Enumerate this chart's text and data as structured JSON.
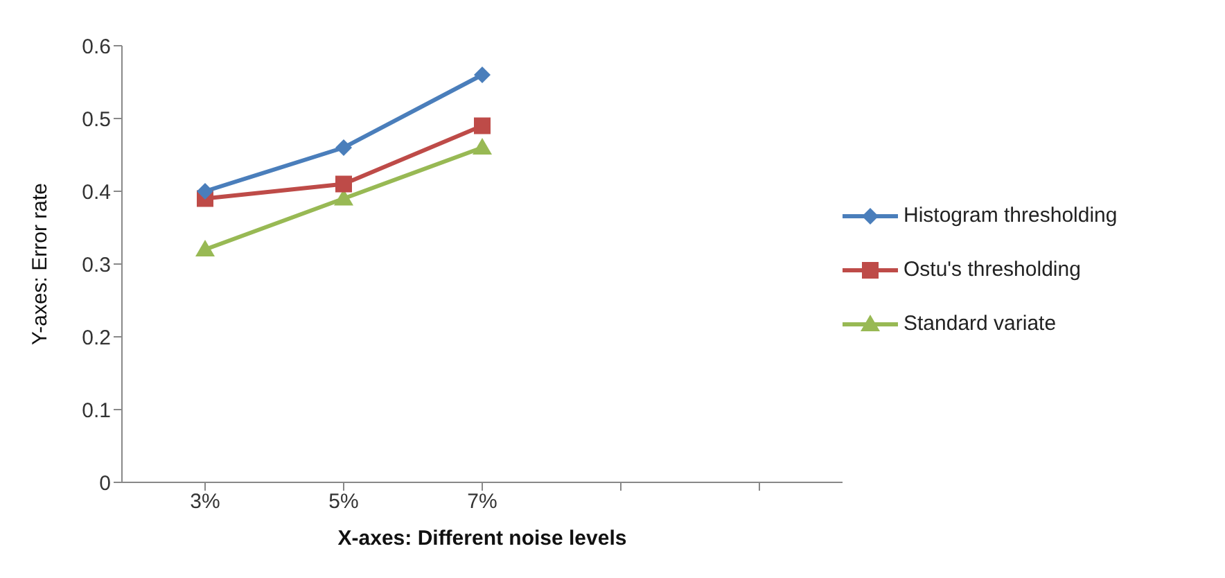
{
  "chart_data": {
    "type": "line",
    "xlabel": "X-axes: Different noise levels",
    "ylabel": "Y-axes: Error rate",
    "categories": [
      "3%",
      "5%",
      "7%",
      null,
      null
    ],
    "series": [
      {
        "name": "Histogram thresholding",
        "color": "#4a7ebb",
        "marker": "diamond",
        "values": [
          0.4,
          0.46,
          0.56,
          null,
          null
        ]
      },
      {
        "name": "Ostu's thresholding",
        "color": "#be4b48",
        "marker": "square",
        "values": [
          0.39,
          0.41,
          0.49,
          null,
          null
        ]
      },
      {
        "name": "Standard variate",
        "color": "#98b954",
        "marker": "triangle",
        "values": [
          0.32,
          0.39,
          0.46,
          null,
          null
        ]
      }
    ],
    "ylim": [
      0,
      0.6
    ],
    "yticks": [
      0,
      0.1,
      0.2,
      0.3,
      0.4,
      0.5,
      0.6
    ],
    "grid": false,
    "legend": "right"
  }
}
